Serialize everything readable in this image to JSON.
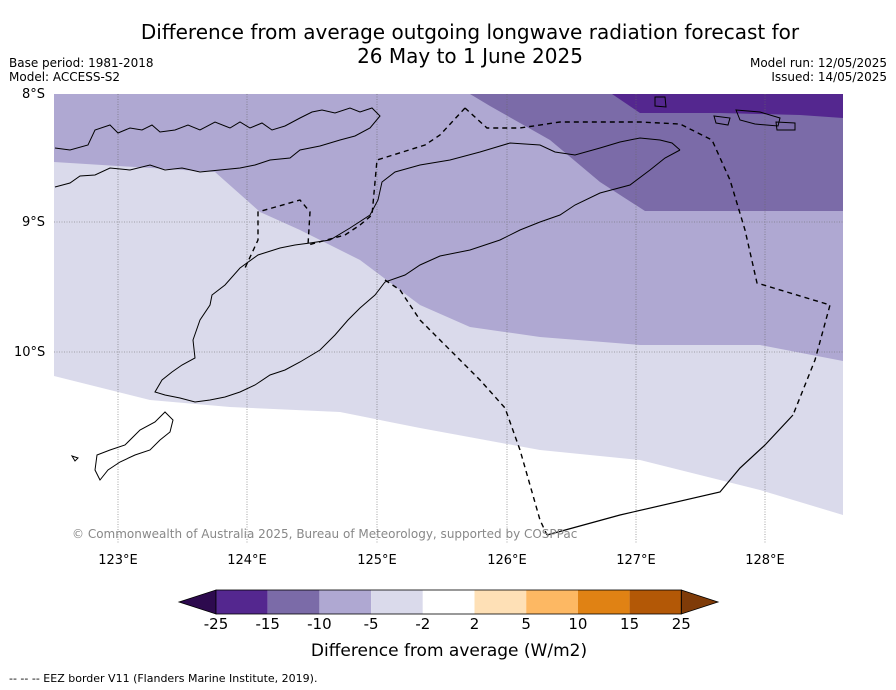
{
  "title_line1": "Difference from average outgoing longwave radiation forecast for",
  "title_line2": "26 May to 1 June 2025",
  "base_period": "Base period: 1981-2018",
  "model": "Model: ACCESS-S2",
  "model_run": "Model run: 12/05/2025",
  "issued": "Issued: 14/05/2025",
  "lat_labels": [
    "8°S",
    "9°S",
    "10°S"
  ],
  "lon_labels": [
    "123°E",
    "124°E",
    "125°E",
    "126°E",
    "127°E",
    "128°E"
  ],
  "copyright": "© Commonwealth of Australia 2025, Bureau of Meteorology, supported by COSPPac",
  "colorbar": {
    "label": "Difference from average (W/m2)",
    "ticks": [
      "-25",
      "-15",
      "-10",
      "-5",
      "-2",
      "2",
      "5",
      "10",
      "15",
      "25"
    ],
    "colors": [
      "#2d0a4e",
      "#54278f",
      "#7b6ba8",
      "#afa8d2",
      "#dadaeb",
      "#ffffff",
      "#fee0b6",
      "#fdb863",
      "#e08214",
      "#b35806",
      "#7f3b08"
    ]
  },
  "footer": "-- -- -- EEZ border V11 (Flanders Marine Institute, 2019)."
}
